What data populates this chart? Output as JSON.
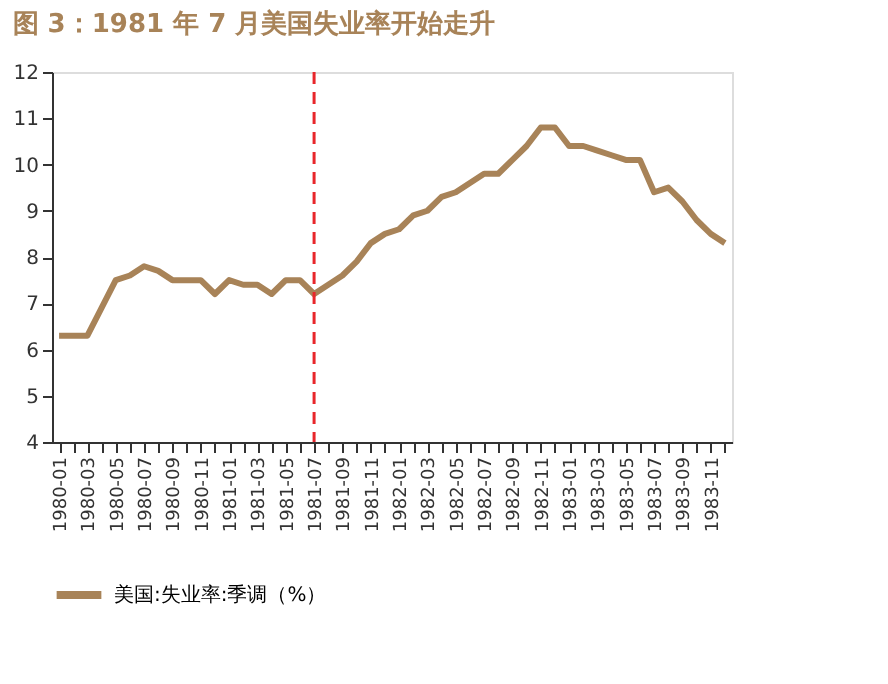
{
  "chart_data": {
    "type": "line",
    "title": "图 3：1981 年 7 月美国失业率开始走升",
    "categories": [
      "1980-01",
      null,
      "1980-03",
      null,
      "1980-05",
      null,
      "1980-07",
      null,
      "1980-09",
      null,
      "1980-11",
      null,
      "1981-01",
      null,
      "1981-03",
      null,
      "1981-05",
      null,
      "1981-07",
      null,
      "1981-09",
      null,
      "1981-11",
      null,
      "1982-01",
      null,
      "1982-03",
      null,
      "1982-05",
      null,
      "1982-07",
      null,
      "1982-09",
      null,
      "1982-11",
      null,
      "1983-01",
      null,
      "1983-03",
      null,
      "1983-05",
      null,
      "1983-07",
      null,
      "1983-09",
      null,
      "1983-11",
      null
    ],
    "series": [
      {
        "name": "美国:失业率:季调（%）",
        "color": "#a88358",
        "values": [
          6.3,
          6.3,
          6.3,
          6.9,
          7.5,
          7.6,
          7.8,
          7.7,
          7.5,
          7.5,
          7.5,
          7.2,
          7.5,
          7.4,
          7.4,
          7.2,
          7.5,
          7.5,
          7.2,
          7.4,
          7.6,
          7.9,
          8.3,
          8.5,
          8.6,
          8.9,
          9.0,
          9.3,
          9.4,
          9.6,
          9.8,
          9.8,
          10.1,
          10.4,
          10.8,
          10.8,
          10.4,
          10.4,
          10.3,
          10.2,
          10.1,
          10.1,
          9.4,
          9.5,
          9.2,
          8.8,
          8.5,
          8.3
        ]
      }
    ],
    "ylim": [
      4,
      12
    ],
    "yticks": [
      4,
      5,
      6,
      7,
      8,
      9,
      10,
      11,
      12
    ],
    "ref_lines": [
      {
        "axis": "x",
        "value": "1981-07",
        "color": "#e8262b",
        "line_style": "dashed"
      }
    ],
    "grid": false,
    "legend": "bottom",
    "marker": "none",
    "line_style": "solid"
  }
}
